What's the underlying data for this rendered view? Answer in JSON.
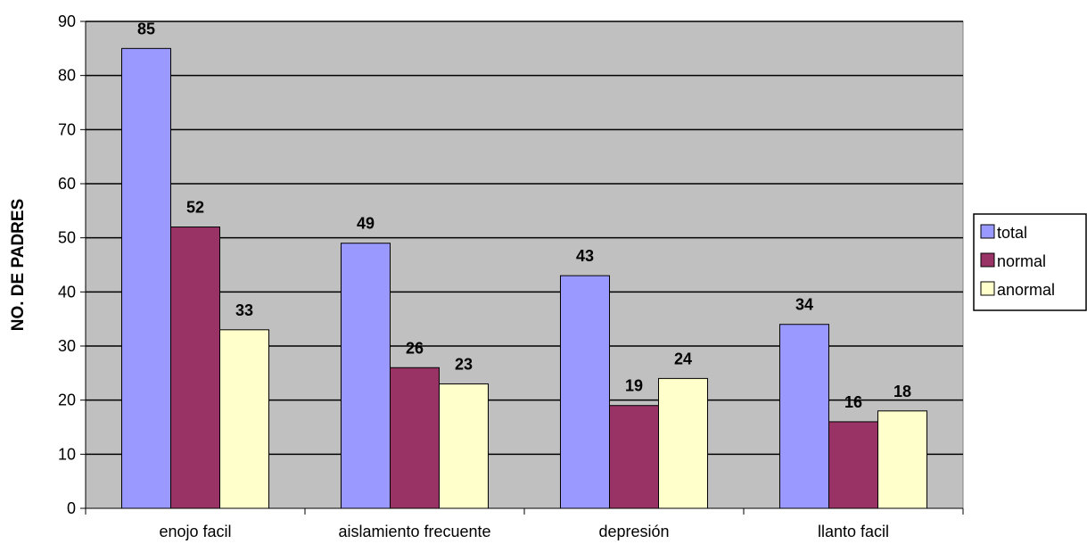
{
  "chart_data": {
    "type": "bar",
    "title": "",
    "xlabel": "",
    "ylabel": "NO. DE PADRES",
    "categories": [
      "enojo facil",
      "aislamiento frecuente",
      "depresión",
      "llanto facil"
    ],
    "series": [
      {
        "name": "total",
        "values": [
          85,
          49,
          43,
          34
        ],
        "color": "#9999ff"
      },
      {
        "name": "normal",
        "values": [
          52,
          26,
          19,
          16
        ],
        "color": "#993366"
      },
      {
        "name": "anormal",
        "values": [
          33,
          23,
          24,
          18
        ],
        "color": "#ffffcc"
      }
    ],
    "ylim": [
      0,
      90
    ],
    "yticks": [
      "0",
      "10",
      "20",
      "30",
      "40",
      "50",
      "60",
      "70",
      "80",
      "90"
    ],
    "grid": true,
    "legend": "right",
    "plot_background": "#c0c0c0"
  }
}
